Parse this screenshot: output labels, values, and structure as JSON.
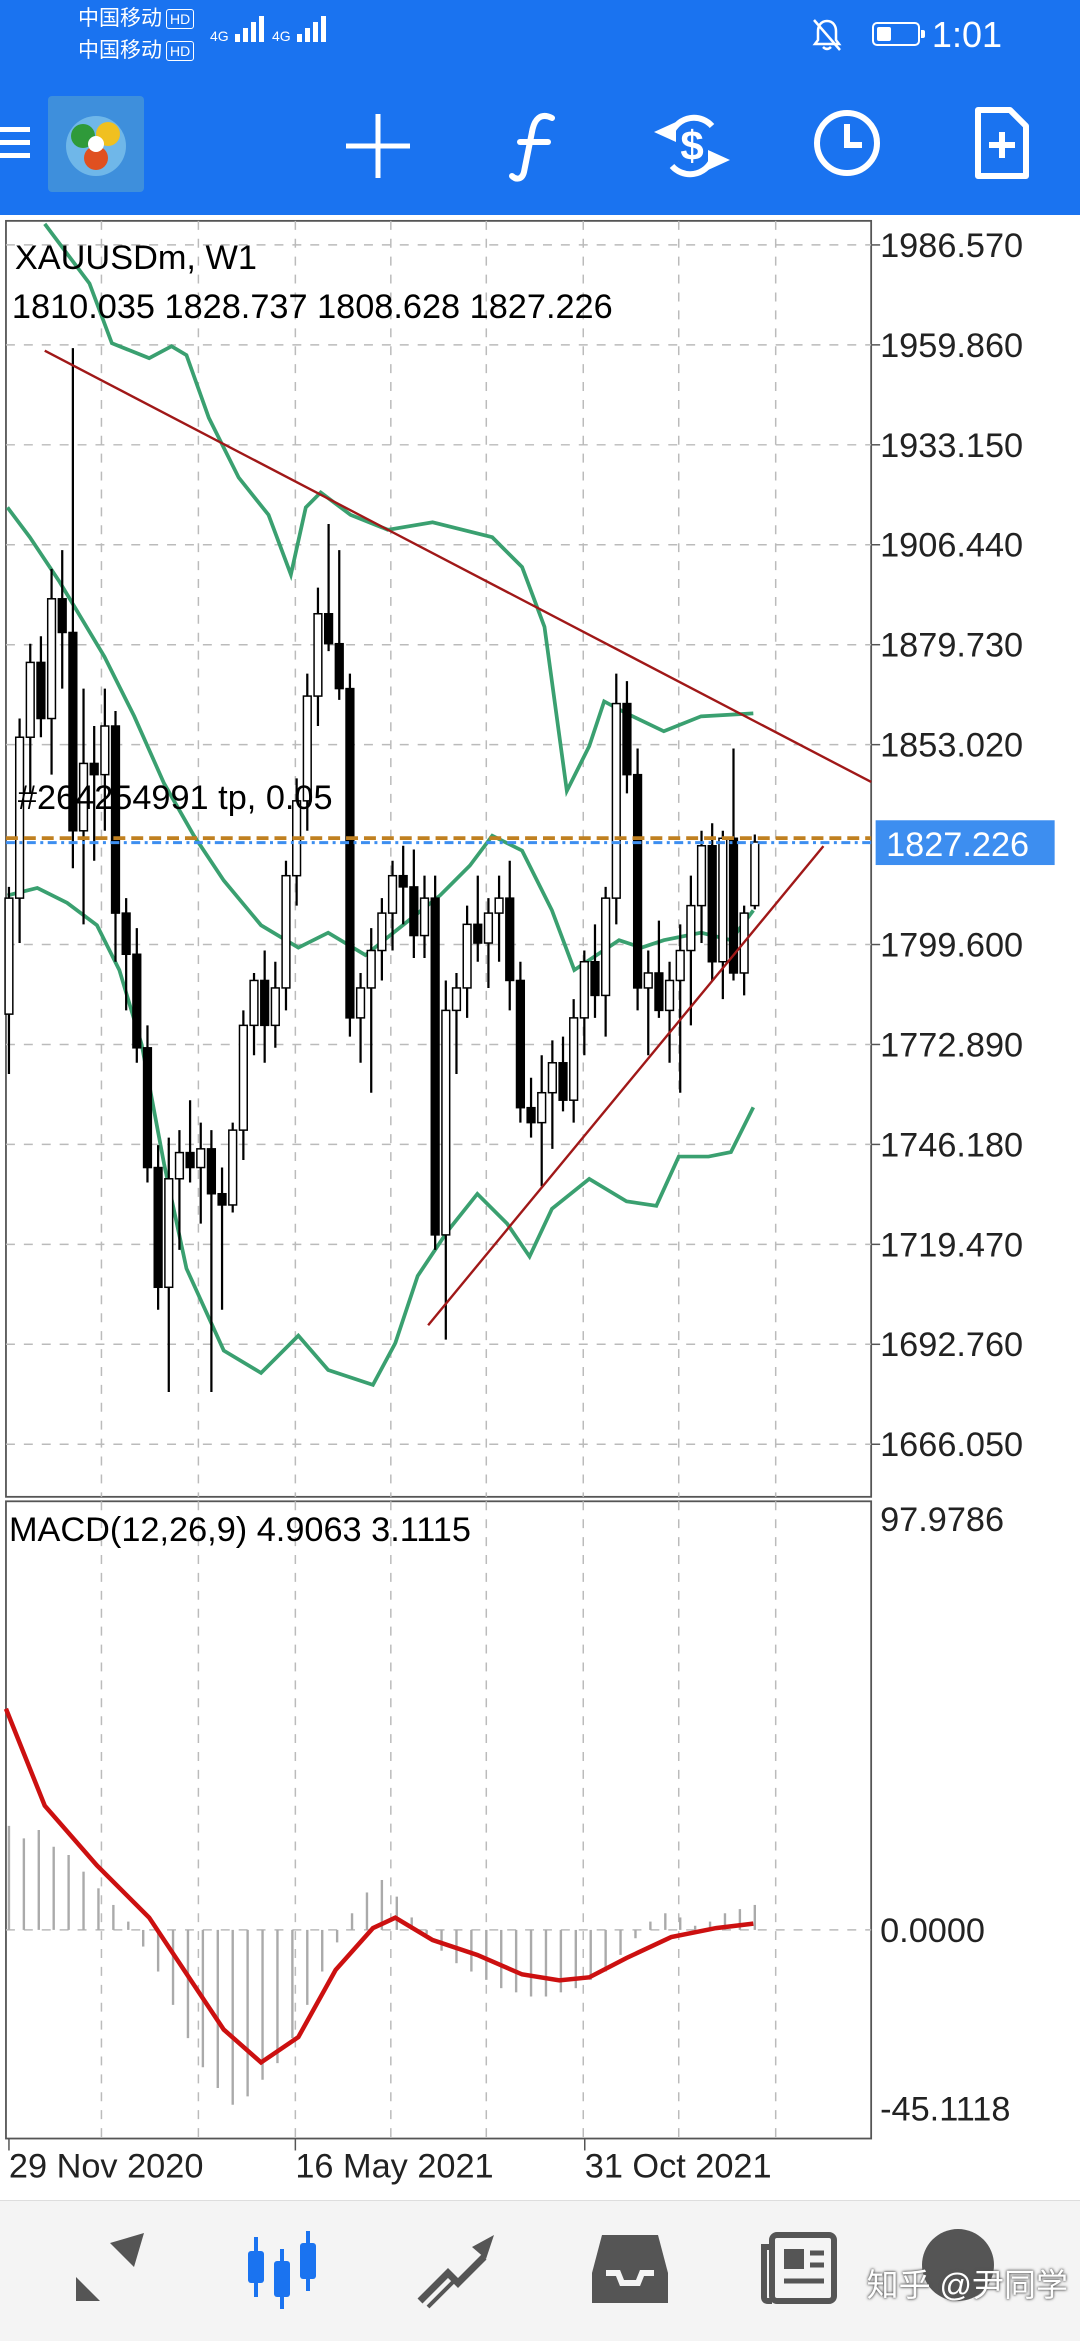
{
  "status_bar": {
    "carrier1": "中国移动",
    "carrier2": "中国移动",
    "hd": "HD",
    "net": "4G",
    "time": "1:01"
  },
  "toolbar": {
    "icons": [
      "menu-icon",
      "metatrader-logo",
      "crosshair-icon",
      "indicators-icon",
      "trade-icon",
      "timeframe-icon",
      "new-order-icon"
    ]
  },
  "chart": {
    "symbol": "XAUUSDm, W1",
    "ohlc": "1810.035 1828.737 1808.628 1827.226",
    "order_label": "#264254991 tp, 0.05",
    "current_price": "1827.226",
    "price_ticks": [
      "1986.570",
      "1959.860",
      "1933.150",
      "1906.440",
      "1879.730",
      "1853.020",
      "1799.600",
      "1772.890",
      "1746.180",
      "1719.470",
      "1692.760",
      "1666.050"
    ],
    "macd_label": "MACD(12,26,9) 4.9063 3.1115",
    "macd_ticks": [
      "97.9786",
      "0.0000",
      "-45.1118"
    ],
    "date_labels": [
      "29 Nov 2020",
      "16 May 2021",
      "31 Oct 2021"
    ],
    "colors": {
      "bollinger": "#3aa070",
      "trendline": "#a01818",
      "macd_signal": "#cc1010",
      "price_tag": "#3d8ef0"
    }
  },
  "chart_data": {
    "type": "candlestick",
    "timeframe": "W1",
    "ylim": [
      1652,
      1993
    ],
    "candles": [
      [
        1781,
        1815,
        1765,
        1812
      ],
      [
        1812,
        1860,
        1800,
        1855
      ],
      [
        1855,
        1880,
        1840,
        1875
      ],
      [
        1875,
        1882,
        1855,
        1860
      ],
      [
        1860,
        1900,
        1845,
        1892
      ],
      [
        1892,
        1905,
        1868,
        1883
      ],
      [
        1883,
        1959,
        1820,
        1830
      ],
      [
        1830,
        1868,
        1805,
        1848
      ],
      [
        1848,
        1858,
        1822,
        1845
      ],
      [
        1845,
        1868,
        1830,
        1858
      ],
      [
        1858,
        1862,
        1795,
        1808
      ],
      [
        1808,
        1812,
        1782,
        1797
      ],
      [
        1797,
        1804,
        1768,
        1772
      ],
      [
        1772,
        1778,
        1736,
        1740
      ],
      [
        1740,
        1746,
        1702,
        1708
      ],
      [
        1708,
        1748,
        1680,
        1737
      ],
      [
        1737,
        1750,
        1718,
        1744
      ],
      [
        1744,
        1758,
        1736,
        1740
      ],
      [
        1740,
        1752,
        1725,
        1745
      ],
      [
        1745,
        1750,
        1680,
        1733
      ],
      [
        1733,
        1740,
        1702,
        1730
      ],
      [
        1730,
        1752,
        1728,
        1750
      ],
      [
        1750,
        1782,
        1742,
        1778
      ],
      [
        1778,
        1792,
        1770,
        1790
      ],
      [
        1790,
        1798,
        1768,
        1778
      ],
      [
        1778,
        1795,
        1772,
        1788
      ],
      [
        1788,
        1822,
        1782,
        1818
      ],
      [
        1818,
        1844,
        1810,
        1838
      ],
      [
        1838,
        1872,
        1830,
        1866
      ],
      [
        1866,
        1895,
        1858,
        1888
      ],
      [
        1888,
        1912,
        1878,
        1880
      ],
      [
        1880,
        1905,
        1865,
        1868
      ],
      [
        1868,
        1872,
        1775,
        1780
      ],
      [
        1780,
        1792,
        1768,
        1788
      ],
      [
        1788,
        1804,
        1760,
        1798
      ],
      [
        1798,
        1812,
        1790,
        1808
      ],
      [
        1808,
        1822,
        1798,
        1818
      ],
      [
        1818,
        1826,
        1805,
        1815
      ],
      [
        1815,
        1825,
        1796,
        1802
      ],
      [
        1802,
        1818,
        1796,
        1812
      ],
      [
        1812,
        1818,
        1718,
        1722
      ],
      [
        1722,
        1790,
        1694,
        1782
      ],
      [
        1782,
        1792,
        1765,
        1788
      ],
      [
        1788,
        1810,
        1780,
        1805
      ],
      [
        1805,
        1818,
        1795,
        1800
      ],
      [
        1800,
        1812,
        1788,
        1808
      ],
      [
        1808,
        1818,
        1795,
        1812
      ],
      [
        1812,
        1822,
        1782,
        1790
      ],
      [
        1790,
        1795,
        1752,
        1756
      ],
      [
        1756,
        1764,
        1748,
        1752
      ],
      [
        1752,
        1770,
        1735,
        1760
      ],
      [
        1760,
        1774,
        1745,
        1768
      ],
      [
        1768,
        1775,
        1755,
        1758
      ],
      [
        1758,
        1785,
        1752,
        1780
      ],
      [
        1780,
        1798,
        1770,
        1795
      ],
      [
        1795,
        1805,
        1780,
        1786
      ],
      [
        1786,
        1815,
        1775,
        1812
      ],
      [
        1812,
        1872,
        1805,
        1864
      ],
      [
        1864,
        1870,
        1840,
        1845
      ],
      [
        1845,
        1852,
        1782,
        1788
      ],
      [
        1788,
        1798,
        1770,
        1792
      ],
      [
        1792,
        1806,
        1780,
        1782
      ],
      [
        1782,
        1795,
        1768,
        1790
      ],
      [
        1790,
        1805,
        1760,
        1798
      ],
      [
        1798,
        1818,
        1778,
        1810
      ],
      [
        1810,
        1830,
        1800,
        1826
      ],
      [
        1826,
        1832,
        1790,
        1795
      ],
      [
        1795,
        1830,
        1785,
        1828
      ],
      [
        1828,
        1852,
        1790,
        1792
      ],
      [
        1792,
        1810,
        1786,
        1808
      ],
      [
        1810,
        1829,
        1809,
        1827
      ]
    ],
    "macd": {
      "histogram_last": 4.9063,
      "signal_last": 3.1115,
      "ylim": [
        -45.1118,
        97.9786
      ]
    }
  }
}
